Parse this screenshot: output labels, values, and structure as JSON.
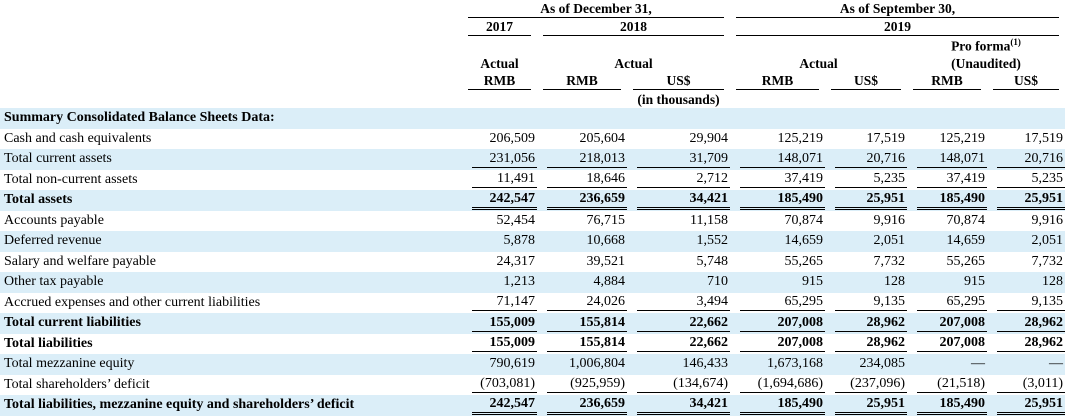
{
  "header": {
    "period_1": "As of December 31,",
    "period_2": "As of September 30,",
    "year_2017": "2017",
    "year_2018": "2018",
    "year_2019": "2019",
    "pro_forma": "Pro forma",
    "pro_forma_note": "(1)",
    "actual_2017": "Actual",
    "actual_2018": "Actual",
    "actual_2019": "Actual",
    "unaudited": "(Unaudited)",
    "currencies": [
      "RMB",
      "RMB",
      "US$",
      "RMB",
      "US$",
      "RMB",
      "US$"
    ],
    "unit_note": "(in thousands)"
  },
  "table": {
    "section_title": "Summary Consolidated Balance Sheets Data:",
    "rows": [
      {
        "label": "Cash and cash equivalents",
        "values": [
          "206,509",
          "205,604",
          "29,904",
          "125,219",
          "17,519",
          "125,219",
          "17,519"
        ]
      },
      {
        "label": "Total current assets",
        "values": [
          "231,056",
          "218,013",
          "31,709",
          "148,071",
          "20,716",
          "148,071",
          "20,716"
        ]
      },
      {
        "label": "Total non-current assets",
        "values": [
          "11,491",
          "18,646",
          "2,712",
          "37,419",
          "5,235",
          "37,419",
          "5,235"
        ]
      },
      {
        "label": "Total assets",
        "values": [
          "242,547",
          "236,659",
          "34,421",
          "185,490",
          "25,951",
          "185,490",
          "25,951"
        ]
      },
      {
        "label": "Accounts payable",
        "values": [
          "52,454",
          "76,715",
          "11,158",
          "70,874",
          "9,916",
          "70,874",
          "9,916"
        ]
      },
      {
        "label": "Deferred revenue",
        "values": [
          "5,878",
          "10,668",
          "1,552",
          "14,659",
          "2,051",
          "14,659",
          "2,051"
        ]
      },
      {
        "label": "Salary and welfare payable",
        "values": [
          "24,317",
          "39,521",
          "5,748",
          "55,265",
          "7,732",
          "55,265",
          "7,732"
        ]
      },
      {
        "label": "Other tax payable",
        "values": [
          "1,213",
          "4,884",
          "710",
          "915",
          "128",
          "915",
          "128"
        ]
      },
      {
        "label": "Accrued expenses and other current liabilities",
        "values": [
          "71,147",
          "24,026",
          "3,494",
          "65,295",
          "9,135",
          "65,295",
          "9,135"
        ]
      },
      {
        "label": "Total current liabilities",
        "values": [
          "155,009",
          "155,814",
          "22,662",
          "207,008",
          "28,962",
          "207,008",
          "28,962"
        ]
      },
      {
        "label": "Total liabilities",
        "values": [
          "155,009",
          "155,814",
          "22,662",
          "207,008",
          "28,962",
          "207,008",
          "28,962"
        ]
      },
      {
        "label": "Total mezzanine equity",
        "values": [
          "790,619",
          "1,006,804",
          "146,433",
          "1,673,168",
          "234,085",
          "—",
          "—"
        ]
      },
      {
        "label": "Total shareholders’ deficit",
        "values": [
          "(703,081)",
          "(925,959)",
          "(134,674)",
          "(1,694,686)",
          "(237,096)",
          "(21,518)",
          "(3,011)"
        ]
      },
      {
        "label": "Total liabilities, mezzanine equity and shareholders’ deficit",
        "values": [
          "242,547",
          "236,659",
          "34,421",
          "185,490",
          "25,951",
          "185,490",
          "25,951"
        ]
      }
    ]
  }
}
